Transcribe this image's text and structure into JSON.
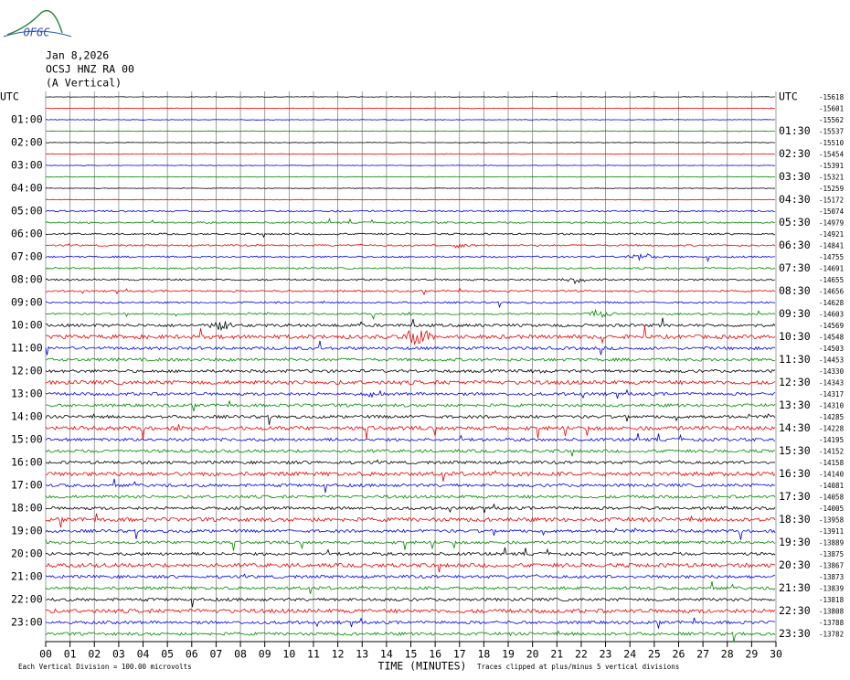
{
  "logo": "OFGC",
  "header": {
    "date": "Jan 8,2026",
    "station": "OCSJ HNZ RA 00",
    "component": "(A Vertical)"
  },
  "left_labels": [
    "UTC",
    "01:00",
    "02:00",
    "03:00",
    "04:00",
    "05:00",
    "06:00",
    "07:00",
    "08:00",
    "09:00",
    "10:00",
    "11:00",
    "12:00",
    "13:00",
    "14:00",
    "15:00",
    "16:00",
    "17:00",
    "18:00",
    "19:00",
    "20:00",
    "21:00",
    "22:00",
    "23:00"
  ],
  "right_labels": [
    "UTC",
    "01:30",
    "02:30",
    "03:30",
    "04:30",
    "05:30",
    "06:30",
    "07:30",
    "08:30",
    "09:30",
    "10:30",
    "11:30",
    "12:30",
    "13:30",
    "14:30",
    "15:30",
    "16:30",
    "17:30",
    "18:30",
    "19:30",
    "20:30",
    "21:30",
    "22:30",
    "23:30"
  ],
  "offsets": [
    "-15618",
    "-15601",
    "-15562",
    "-15537",
    "-15510",
    "-15454",
    "-15391",
    "-15321",
    "-15259",
    "-15172",
    "-15074",
    "-14979",
    "-14921",
    "-14841",
    "-14755",
    "-14691",
    "-14655",
    "-14656",
    "-14628",
    "-14603",
    "-14569",
    "-14548",
    "-14503",
    "-14453",
    "-14330",
    "-14343",
    "-14317",
    "-14310",
    "-14285",
    "-14228",
    "-14195",
    "-14152",
    "-14158",
    "-14140",
    "-14081",
    "-14058",
    "-14005",
    "-13958",
    "-13911",
    "-13889",
    "-13875",
    "-13867",
    "-13873",
    "-13839",
    "-13818",
    "-13808",
    "-13788",
    "-13782"
  ],
  "x_ticks": [
    "00",
    "01",
    "02",
    "03",
    "04",
    "05",
    "06",
    "07",
    "08",
    "09",
    "10",
    "11",
    "12",
    "13",
    "14",
    "15",
    "16",
    "17",
    "18",
    "19",
    "20",
    "21",
    "22",
    "23",
    "24",
    "25",
    "26",
    "27",
    "28",
    "29",
    "30"
  ],
  "footer": {
    "scale": "Each Vertical Division =  100.00 microvolts",
    "axis_title": "TIME (MINUTES)",
    "clip_note": "Traces clipped at plus/minus 5 vertical divisions"
  }
}
